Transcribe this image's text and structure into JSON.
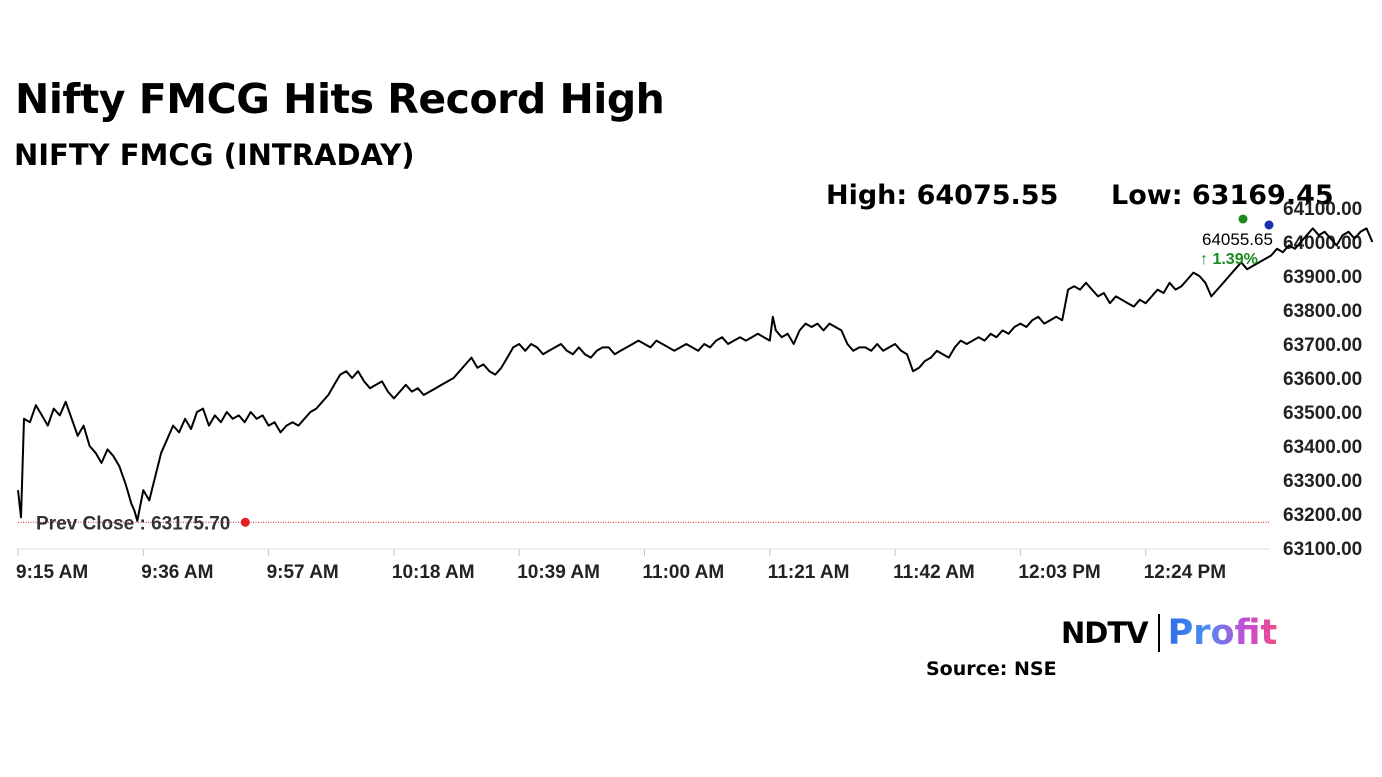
{
  "header": {
    "title": "Nifty FMCG Hits Record High",
    "subtitle": "NIFTY FMCG (INTRADAY)"
  },
  "stats": {
    "high_label": "High: 64075.55",
    "low_label": "Low: 63169.45"
  },
  "chart_data": {
    "type": "line",
    "title": "NIFTY FMCG (INTRADAY)",
    "x_ticks": [
      "9:15 AM",
      "9:36 AM",
      "9:57 AM",
      "10:18 AM",
      "10:39 AM",
      "11:00 AM",
      "11:21 AM",
      "11:42 AM",
      "12:03 PM",
      "12:24 PM"
    ],
    "y_ticks": [
      "63100.00",
      "63200.00",
      "63300.00",
      "63400.00",
      "63500.00",
      "63600.00",
      "63700.00",
      "63800.00",
      "63900.00",
      "64000.00",
      "64100.00"
    ],
    "ylim": [
      63100,
      64100
    ],
    "x_unit": "minutes since 9:15 AM",
    "xlim": [
      0,
      227
    ],
    "grid": false,
    "last_value": "64055.65",
    "change_pct": "↑ 1.39%",
    "prev_close": 63175.7,
    "prev_close_label": "Prev Close : 63175.70",
    "series": [
      {
        "points": [
          [
            0,
            63270
          ],
          [
            0.5,
            63190
          ],
          [
            1,
            63480
          ],
          [
            2,
            63470
          ],
          [
            3,
            63520
          ],
          [
            4,
            63490
          ],
          [
            5,
            63460
          ],
          [
            6,
            63510
          ],
          [
            7,
            63490
          ],
          [
            8,
            63530
          ],
          [
            9,
            63480
          ],
          [
            10,
            63430
          ],
          [
            11,
            63460
          ],
          [
            12,
            63400
          ],
          [
            13,
            63380
          ],
          [
            14,
            63350
          ],
          [
            15,
            63390
          ],
          [
            16,
            63370
          ],
          [
            17,
            63340
          ],
          [
            18,
            63290
          ],
          [
            19,
            63230
          ],
          [
            19.5,
            63210
          ],
          [
            20,
            63180
          ],
          [
            21,
            63270
          ],
          [
            22,
            63240
          ],
          [
            23,
            63310
          ],
          [
            24,
            63380
          ],
          [
            25,
            63420
          ],
          [
            26,
            63460
          ],
          [
            27,
            63440
          ],
          [
            28,
            63480
          ],
          [
            29,
            63450
          ],
          [
            30,
            63500
          ],
          [
            31,
            63510
          ],
          [
            32,
            63460
          ],
          [
            33,
            63490
          ],
          [
            34,
            63470
          ],
          [
            35,
            63500
          ],
          [
            36,
            63480
          ],
          [
            37,
            63490
          ],
          [
            38,
            63470
          ],
          [
            39,
            63500
          ],
          [
            40,
            63480
          ],
          [
            41,
            63490
          ],
          [
            42,
            63460
          ],
          [
            43,
            63470
          ],
          [
            44,
            63440
          ],
          [
            45,
            63460
          ],
          [
            46,
            63470
          ],
          [
            47,
            63460
          ],
          [
            48,
            63480
          ],
          [
            49,
            63500
          ],
          [
            50,
            63510
          ],
          [
            51,
            63530
          ],
          [
            52,
            63550
          ],
          [
            53,
            63580
          ],
          [
            54,
            63610
          ],
          [
            55,
            63620
          ],
          [
            56,
            63600
          ],
          [
            57,
            63620
          ],
          [
            58,
            63590
          ],
          [
            59,
            63570
          ],
          [
            60,
            63580
          ],
          [
            61,
            63590
          ],
          [
            62,
            63560
          ],
          [
            63,
            63540
          ],
          [
            64,
            63560
          ],
          [
            65,
            63580
          ],
          [
            66,
            63560
          ],
          [
            67,
            63570
          ],
          [
            68,
            63550
          ],
          [
            69,
            63560
          ],
          [
            70,
            63570
          ],
          [
            71,
            63580
          ],
          [
            72,
            63590
          ],
          [
            73,
            63600
          ],
          [
            74,
            63620
          ],
          [
            75,
            63640
          ],
          [
            76,
            63660
          ],
          [
            77,
            63630
          ],
          [
            78,
            63640
          ],
          [
            79,
            63620
          ],
          [
            80,
            63610
          ],
          [
            81,
            63630
          ],
          [
            82,
            63660
          ],
          [
            83,
            63690
          ],
          [
            84,
            63700
          ],
          [
            85,
            63680
          ],
          [
            86,
            63700
          ],
          [
            87,
            63690
          ],
          [
            88,
            63670
          ],
          [
            89,
            63680
          ],
          [
            90,
            63690
          ],
          [
            91,
            63700
          ],
          [
            92,
            63680
          ],
          [
            93,
            63670
          ],
          [
            94,
            63690
          ],
          [
            95,
            63670
          ],
          [
            96,
            63660
          ],
          [
            97,
            63680
          ],
          [
            98,
            63690
          ],
          [
            99,
            63690
          ],
          [
            100,
            63670
          ],
          [
            101,
            63680
          ],
          [
            102,
            63690
          ],
          [
            103,
            63700
          ],
          [
            104,
            63710
          ],
          [
            105,
            63700
          ],
          [
            106,
            63690
          ],
          [
            107,
            63710
          ],
          [
            108,
            63700
          ],
          [
            109,
            63690
          ],
          [
            110,
            63680
          ],
          [
            111,
            63690
          ],
          [
            112,
            63700
          ],
          [
            113,
            63690
          ],
          [
            114,
            63680
          ],
          [
            115,
            63700
          ],
          [
            116,
            63690
          ],
          [
            117,
            63710
          ],
          [
            118,
            63720
          ],
          [
            119,
            63700
          ],
          [
            120,
            63710
          ],
          [
            121,
            63720
          ],
          [
            122,
            63710
          ],
          [
            123,
            63720
          ],
          [
            124,
            63730
          ],
          [
            125,
            63720
          ],
          [
            126,
            63710
          ],
          [
            126.5,
            63780
          ],
          [
            127,
            63740
          ],
          [
            128,
            63720
          ],
          [
            129,
            63730
          ],
          [
            130,
            63700
          ],
          [
            131,
            63740
          ],
          [
            132,
            63760
          ],
          [
            133,
            63750
          ],
          [
            134,
            63760
          ],
          [
            135,
            63740
          ],
          [
            136,
            63760
          ],
          [
            137,
            63750
          ],
          [
            138,
            63740
          ],
          [
            139,
            63700
          ],
          [
            140,
            63680
          ],
          [
            141,
            63690
          ],
          [
            142,
            63690
          ],
          [
            143,
            63680
          ],
          [
            144,
            63700
          ],
          [
            145,
            63680
          ],
          [
            146,
            63690
          ],
          [
            147,
            63700
          ],
          [
            148,
            63680
          ],
          [
            149,
            63670
          ],
          [
            150,
            63620
          ],
          [
            151,
            63630
          ],
          [
            152,
            63650
          ],
          [
            153,
            63660
          ],
          [
            154,
            63680
          ],
          [
            155,
            63670
          ],
          [
            156,
            63660
          ],
          [
            157,
            63690
          ],
          [
            158,
            63710
          ],
          [
            159,
            63700
          ],
          [
            160,
            63710
          ],
          [
            161,
            63720
          ],
          [
            162,
            63710
          ],
          [
            163,
            63730
          ],
          [
            164,
            63720
          ],
          [
            165,
            63740
          ],
          [
            166,
            63730
          ],
          [
            167,
            63750
          ],
          [
            168,
            63760
          ],
          [
            169,
            63750
          ],
          [
            170,
            63770
          ],
          [
            171,
            63780
          ],
          [
            172,
            63760
          ],
          [
            173,
            63770
          ],
          [
            174,
            63780
          ],
          [
            175,
            63770
          ],
          [
            176,
            63860
          ],
          [
            177,
            63870
          ],
          [
            178,
            63860
          ],
          [
            179,
            63880
          ],
          [
            180,
            63860
          ],
          [
            181,
            63840
          ],
          [
            182,
            63850
          ],
          [
            183,
            63820
          ],
          [
            184,
            63840
          ],
          [
            185,
            63830
          ],
          [
            186,
            63820
          ],
          [
            187,
            63810
          ],
          [
            188,
            63830
          ],
          [
            189,
            63820
          ],
          [
            190,
            63840
          ],
          [
            191,
            63860
          ],
          [
            192,
            63850
          ],
          [
            193,
            63880
          ],
          [
            194,
            63860
          ],
          [
            195,
            63870
          ],
          [
            196,
            63890
          ],
          [
            197,
            63910
          ],
          [
            198,
            63900
          ],
          [
            199,
            63880
          ],
          [
            200,
            63840
          ],
          [
            201,
            63860
          ],
          [
            202,
            63880
          ],
          [
            203,
            63900
          ],
          [
            204,
            63920
          ],
          [
            205,
            63940
          ],
          [
            206,
            63920
          ],
          [
            207,
            63930
          ],
          [
            208,
            63940
          ],
          [
            209,
            63950
          ],
          [
            210,
            63960
          ],
          [
            211,
            63980
          ],
          [
            212,
            63970
          ],
          [
            213,
            63990
          ],
          [
            214,
            63980
          ],
          [
            215,
            64000
          ],
          [
            216,
            64020
          ],
          [
            217,
            64040
          ],
          [
            218,
            64020
          ],
          [
            219,
            64030
          ],
          [
            220,
            64010
          ],
          [
            221,
            63990
          ],
          [
            222,
            64020
          ],
          [
            223,
            64030
          ],
          [
            224,
            64010
          ],
          [
            225,
            64030
          ],
          [
            226,
            64040
          ],
          [
            227,
            64000
          ]
        ]
      }
    ]
  },
  "footer": {
    "logo_left": "NDTV",
    "logo_right": "Profit",
    "source": "Source: NSE"
  }
}
